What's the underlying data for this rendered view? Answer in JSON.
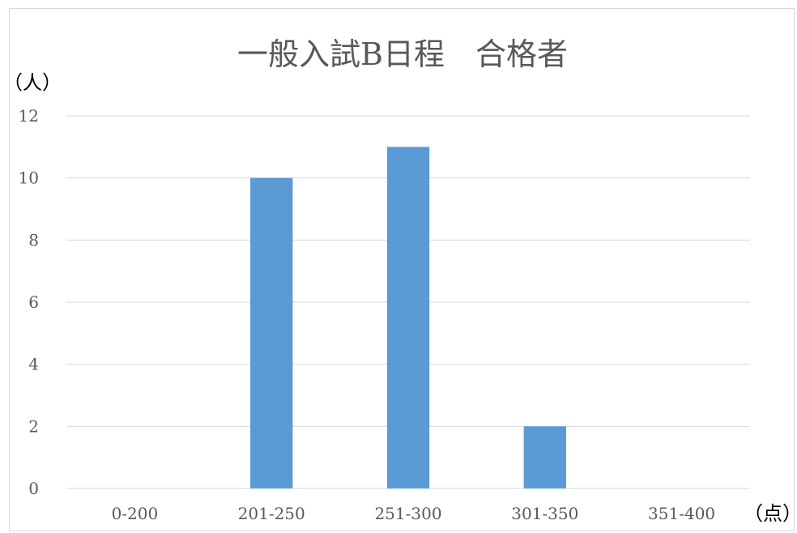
{
  "chart_data": {
    "type": "bar",
    "title": "一般入試B日程　合格者",
    "ylabel": "（人）",
    "xlabel": "（点）",
    "categories": [
      "0-200",
      "201-250",
      "251-300",
      "301-350",
      "351-400"
    ],
    "values": [
      0,
      10,
      11,
      2,
      0
    ],
    "ylim": [
      0,
      12
    ],
    "yticks": [
      0,
      2,
      4,
      6,
      8,
      10,
      12
    ],
    "grid": true,
    "legend": "none",
    "bar_color": "#5b9bd5"
  }
}
